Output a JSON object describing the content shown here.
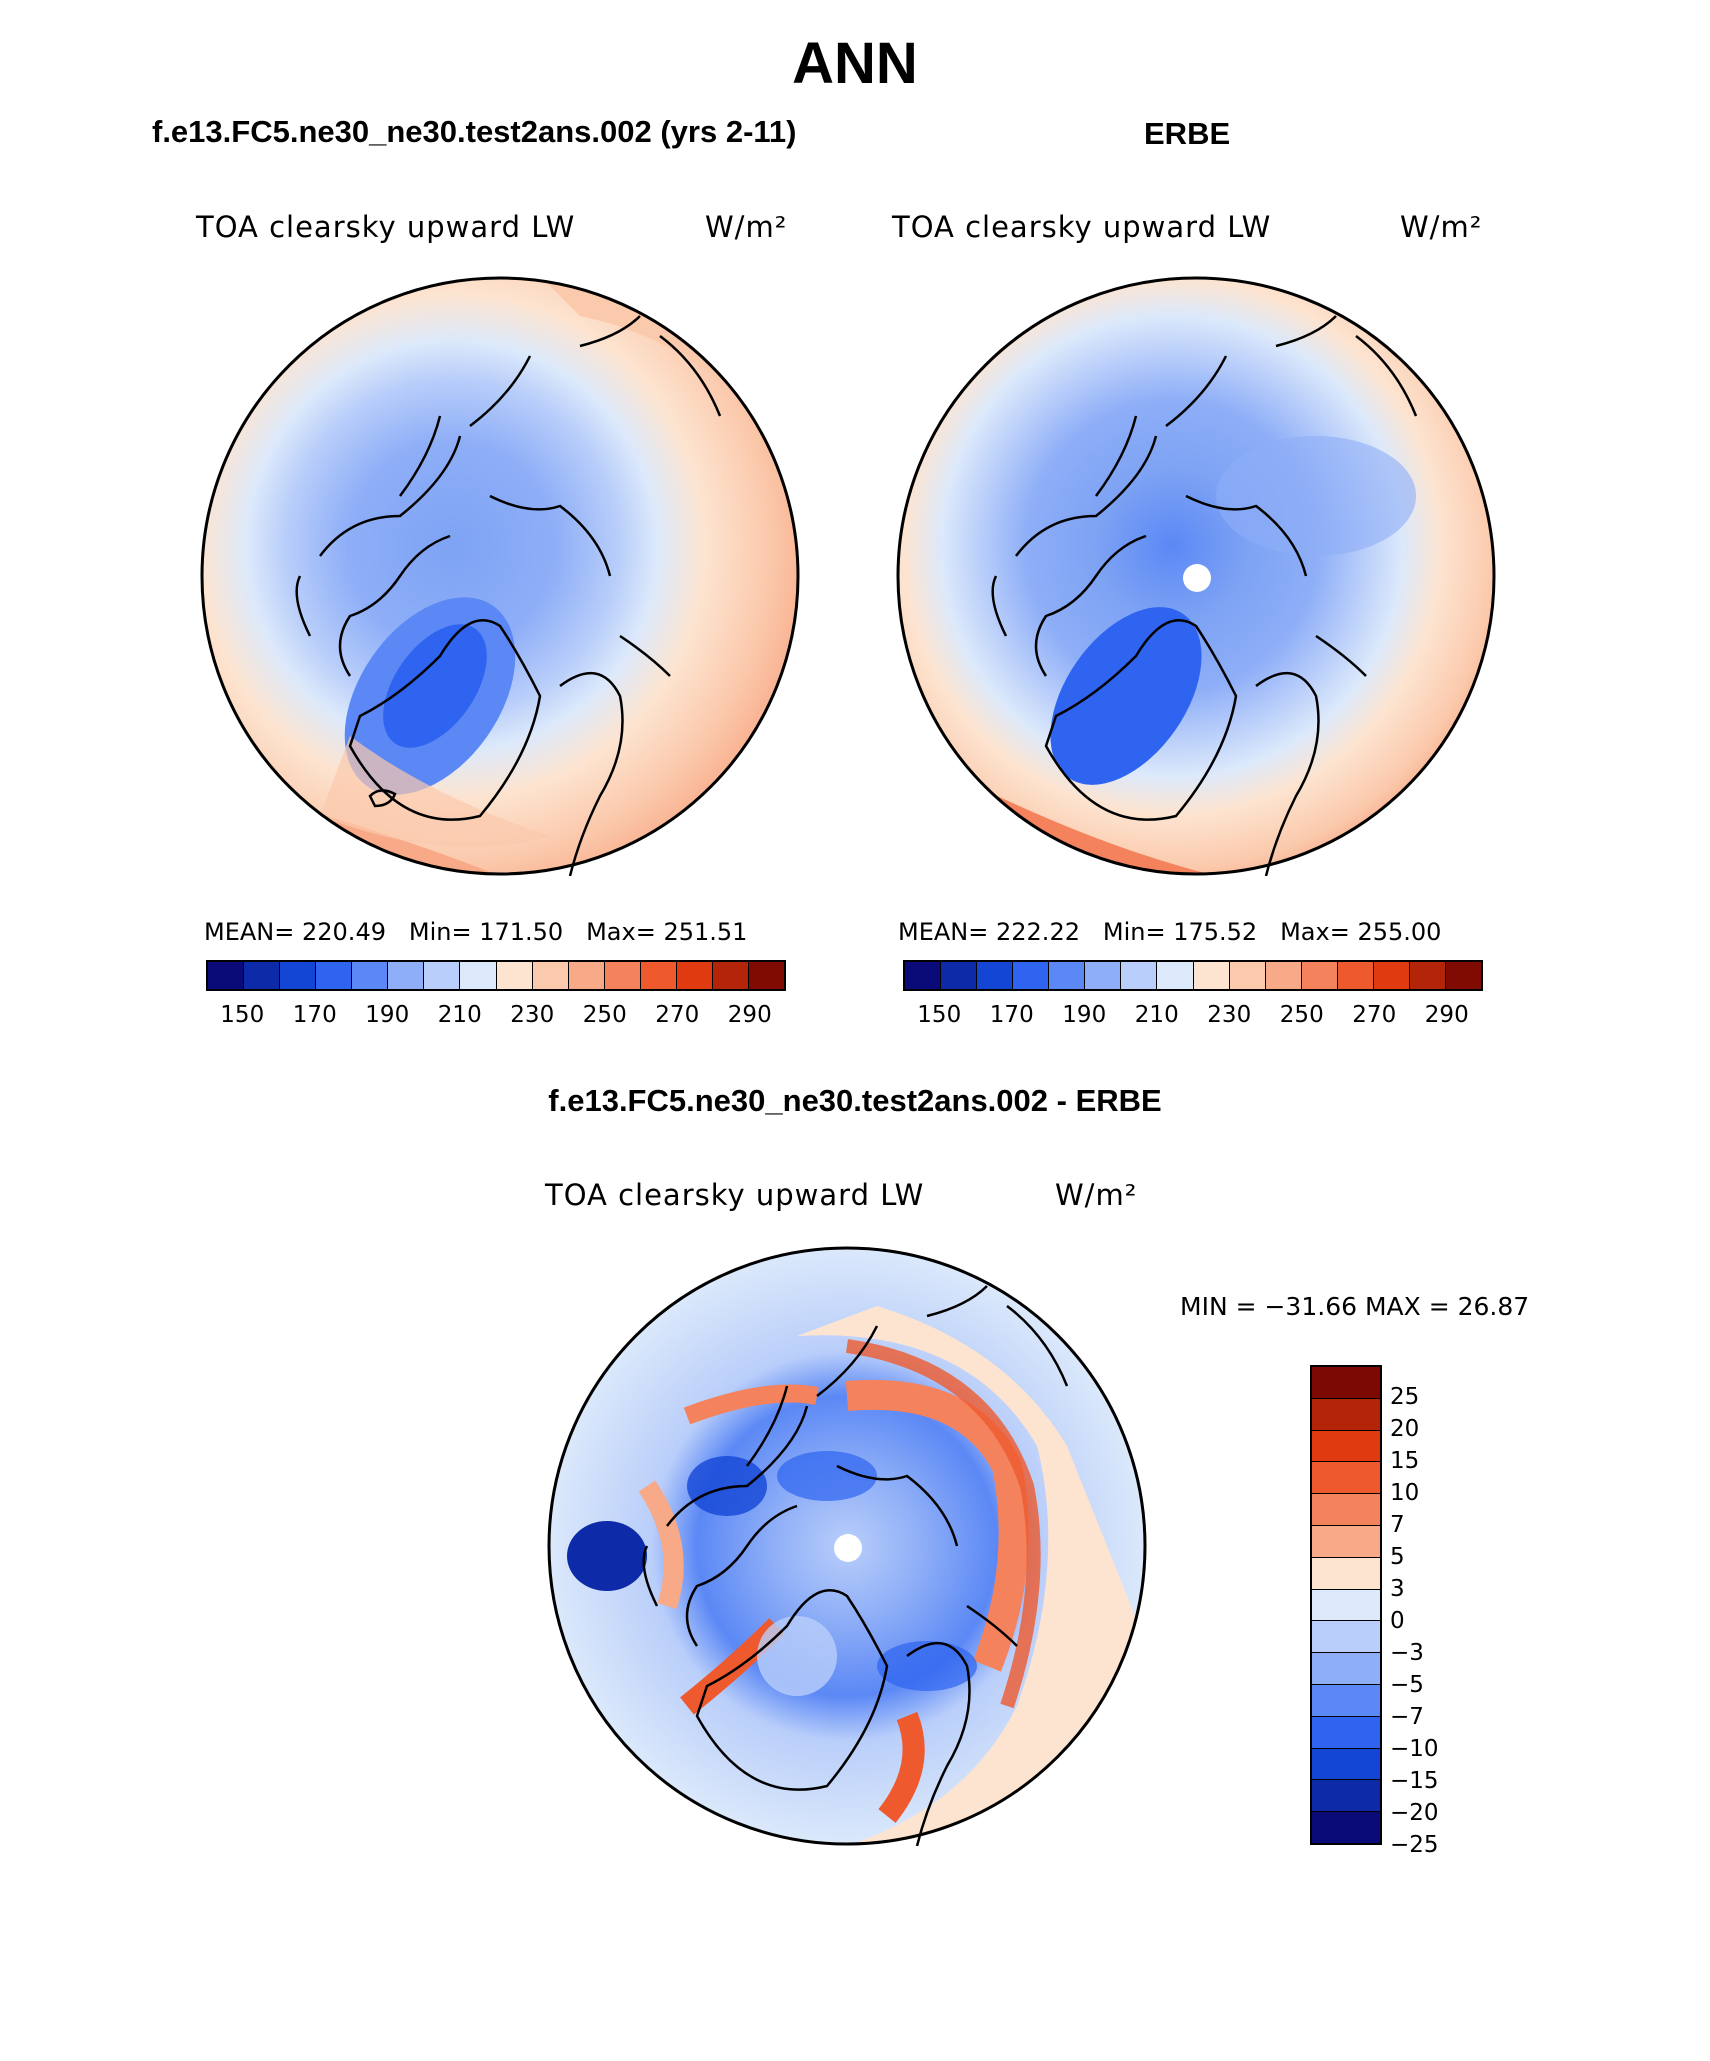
{
  "title": "ANN",
  "panels": [
    {
      "subtitle": "f.e13.FC5.ne30_ne30.test2ans.002 (yrs 2-11)",
      "variable": "TOA clearsky upward LW",
      "units": "W/m²",
      "stats": {
        "mean_label": "MEAN=",
        "mean": "220.49",
        "min_label": "Min=",
        "min": "171.50",
        "max_label": "Max=",
        "max": "251.51"
      }
    },
    {
      "subtitle": "ERBE",
      "variable": "TOA clearsky upward LW",
      "units": "W/m²",
      "stats": {
        "mean_label": "MEAN=",
        "mean": "222.22",
        "min_label": "Min=",
        "min": "175.52",
        "max_label": "Max=",
        "max": "255.00"
      }
    },
    {
      "subtitle": "f.e13.FC5.ne30_ne30.test2ans.002 - ERBE",
      "variable": "TOA clearsky upward LW",
      "units": "W/m²",
      "stats_text": "MIN = −31.66 MAX =   26.87"
    }
  ],
  "colorbar_abs": {
    "ticks": [
      "150",
      "170",
      "190",
      "210",
      "230",
      "250",
      "270",
      "290"
    ],
    "colors": [
      "#0a0a78",
      "#0d2aa8",
      "#1446d6",
      "#2e64f0",
      "#5b88f5",
      "#8eaef7",
      "#b9cefa",
      "#dce9fb",
      "#fde4d0",
      "#fbc9ac",
      "#f8a987",
      "#f4825c",
      "#ee5a2e",
      "#df3a10",
      "#b32408",
      "#800b02"
    ]
  },
  "colorbar_diff": {
    "ticks": [
      "25",
      "20",
      "15",
      "10",
      "7",
      "5",
      "3",
      "0",
      "−3",
      "−5",
      "−7",
      "−10",
      "−15",
      "−20",
      "−25"
    ],
    "colors": [
      "#7d0a02",
      "#b32408",
      "#df3a10",
      "#ee5a2e",
      "#f4825c",
      "#f8a987",
      "#fde4d0",
      "#dce9fb",
      "#b9cefa",
      "#8eaef7",
      "#5b88f5",
      "#2e64f0",
      "#1446d6",
      "#0d2aa8",
      "#0a0a78"
    ]
  }
}
